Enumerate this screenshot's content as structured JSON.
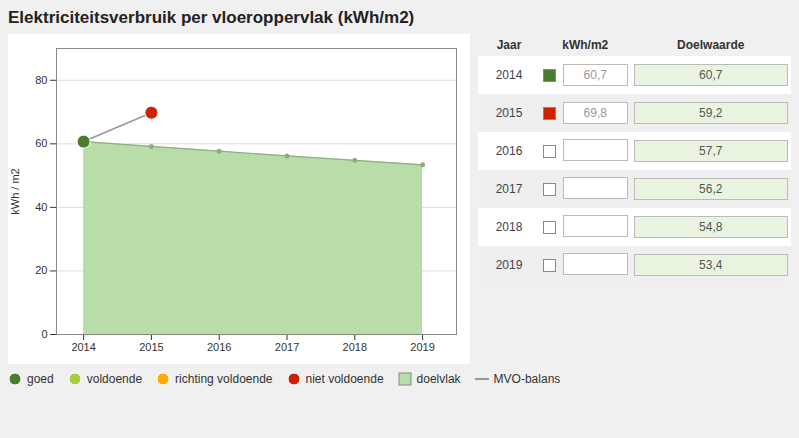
{
  "chart_data": [
    {
      "type": "line",
      "title": "Elektriciteitsverbruik per vloeroppervlak (kWh/m2)",
      "ylabel": "kWh / m2",
      "xlim": [
        2013.6,
        2019.5
      ],
      "xticks": [
        2014,
        2015,
        2016,
        2017,
        2018,
        2019
      ],
      "ylim": [
        0,
        90
      ],
      "yticks": [
        0,
        20,
        40,
        60,
        80
      ],
      "grid": true,
      "legend": "bottom",
      "ratings": [
        {
          "name": "goed",
          "color": "#4a7c2f"
        },
        {
          "name": "voldoende",
          "color": "#aacc44"
        },
        {
          "name": "richting voldoende",
          "color": "#ffaa00"
        },
        {
          "name": "niet voldoende",
          "color": "#cc2200"
        }
      ],
      "series": [
        {
          "name": "doelvlak",
          "type": "area",
          "color": "#b8dda8",
          "marker": "circle",
          "x": [
            2014,
            2015,
            2016,
            2017,
            2018,
            2019
          ],
          "values": [
            60.7,
            59.2,
            57.7,
            56.2,
            54.8,
            53.4
          ]
        },
        {
          "name": "MVO-balans",
          "type": "line",
          "color": "#999999",
          "marker": "circle",
          "x": [
            2014,
            2015
          ],
          "values": [
            60.7,
            69.8
          ],
          "colors": [
            "#4a7c2f",
            "#cc2200"
          ]
        }
      ]
    },
    {
      "type": "table",
      "columns": [
        "Jaar",
        "kWh/m2",
        "Doelwaarde"
      ],
      "categories": [
        "2014",
        "2015",
        "2016",
        "2017",
        "2018",
        "2019"
      ],
      "colors": [
        "#4a7c2f",
        "#cc2200",
        null,
        null,
        null,
        null
      ],
      "values": [
        60.7,
        69.8,
        null,
        null,
        null,
        null
      ],
      "value_labels": [
        "60,7",
        "69,8",
        null,
        null,
        null,
        null
      ],
      "target_values": [
        60.7,
        59.2,
        57.7,
        56.2,
        54.8,
        53.4
      ],
      "target_labels": [
        "60,7",
        "59,2",
        "57,7",
        "56,2",
        "54,8",
        "53,4"
      ]
    }
  ]
}
